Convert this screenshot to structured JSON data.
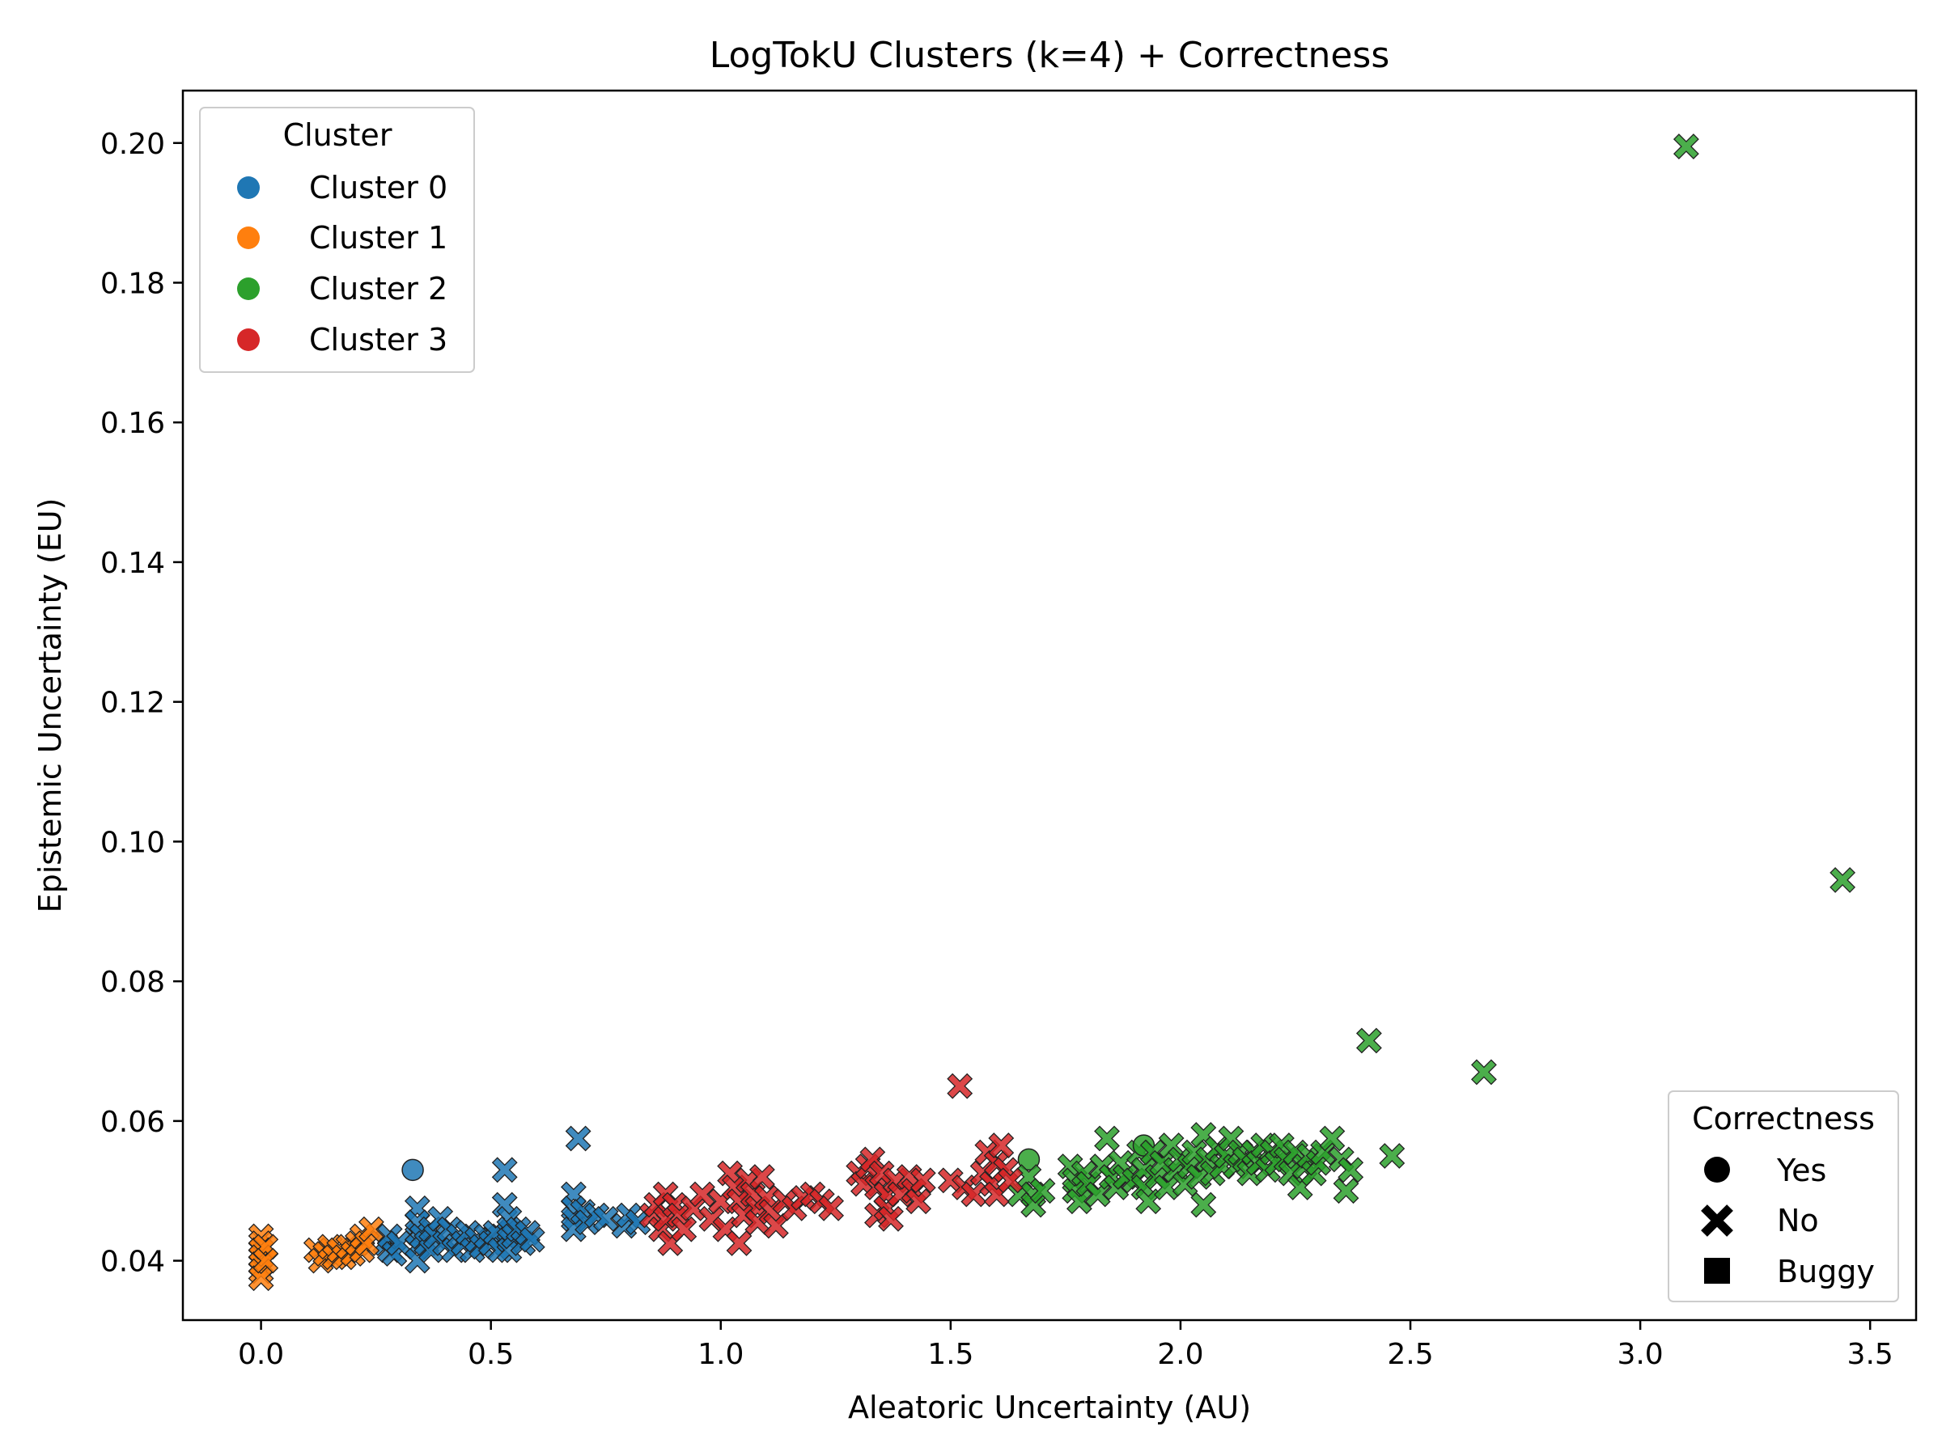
{
  "chart_data": {
    "type": "scatter",
    "title": "LogTokU Clusters (k=4) + Correctness",
    "xlabel": "Aleatoric Uncertainty (AU)",
    "ylabel": "Epistemic Uncertainty (EU)",
    "xlim": [
      -0.17,
      3.6
    ],
    "ylim": [
      0.0315,
      0.2075
    ],
    "xticks": [
      0.0,
      0.5,
      1.0,
      1.5,
      2.0,
      2.5,
      3.0,
      3.5
    ],
    "xtick_labels": [
      "0.0",
      "0.5",
      "1.0",
      "1.5",
      "2.0",
      "2.5",
      "3.0",
      "3.5"
    ],
    "yticks": [
      0.04,
      0.06,
      0.08,
      0.1,
      0.12,
      0.14,
      0.16,
      0.18,
      0.2
    ],
    "ytick_labels": [
      "0.04",
      "0.06",
      "0.08",
      "0.10",
      "0.12",
      "0.14",
      "0.16",
      "0.18",
      "0.20"
    ],
    "grid": false,
    "legend_cluster": {
      "title": "Cluster",
      "placement": "top-left",
      "items": [
        {
          "label": "Cluster 0",
          "color": "#1f77b4"
        },
        {
          "label": "Cluster 1",
          "color": "#ff7f0e"
        },
        {
          "label": "Cluster 2",
          "color": "#2ca02c"
        },
        {
          "label": "Cluster 3",
          "color": "#d62728"
        }
      ]
    },
    "legend_correctness": {
      "title": "Correctness",
      "placement": "bottom-right",
      "items": [
        {
          "label": "Yes",
          "marker": "circle"
        },
        {
          "label": "No",
          "marker": "x"
        },
        {
          "label": "Buggy",
          "marker": "square"
        }
      ]
    },
    "series": [
      {
        "cluster": 0,
        "color": "#1f77b4",
        "points": [
          [
            0.27,
            0.0425,
            "x"
          ],
          [
            0.28,
            0.0415,
            "x"
          ],
          [
            0.28,
            0.0435,
            "x"
          ],
          [
            0.29,
            0.041,
            "x"
          ],
          [
            0.3,
            0.0425,
            "x"
          ],
          [
            0.33,
            0.053,
            "o"
          ],
          [
            0.34,
            0.0475,
            "x"
          ],
          [
            0.34,
            0.0455,
            "x"
          ],
          [
            0.34,
            0.044,
            "x"
          ],
          [
            0.34,
            0.042,
            "x"
          ],
          [
            0.34,
            0.04,
            "x"
          ],
          [
            0.35,
            0.0435,
            "x"
          ],
          [
            0.36,
            0.0425,
            "x"
          ],
          [
            0.37,
            0.0415,
            "x"
          ],
          [
            0.37,
            0.0445,
            "x"
          ],
          [
            0.38,
            0.0435,
            "x"
          ],
          [
            0.39,
            0.046,
            "x"
          ],
          [
            0.4,
            0.0425,
            "x"
          ],
          [
            0.41,
            0.0445,
            "x"
          ],
          [
            0.42,
            0.0415,
            "x"
          ],
          [
            0.43,
            0.0435,
            "x"
          ],
          [
            0.44,
            0.0425,
            "x"
          ],
          [
            0.45,
            0.044,
            "x"
          ],
          [
            0.46,
            0.0415,
            "x"
          ],
          [
            0.47,
            0.043,
            "x"
          ],
          [
            0.48,
            0.042,
            "x"
          ],
          [
            0.49,
            0.0435,
            "x"
          ],
          [
            0.5,
            0.0425,
            "x"
          ],
          [
            0.51,
            0.044,
            "x"
          ],
          [
            0.52,
            0.0415,
            "x"
          ],
          [
            0.53,
            0.053,
            "x"
          ],
          [
            0.53,
            0.048,
            "x"
          ],
          [
            0.54,
            0.046,
            "x"
          ],
          [
            0.54,
            0.0445,
            "x"
          ],
          [
            0.54,
            0.043,
            "x"
          ],
          [
            0.54,
            0.0415,
            "x"
          ],
          [
            0.55,
            0.0435,
            "x"
          ],
          [
            0.56,
            0.0445,
            "x"
          ],
          [
            0.57,
            0.0425,
            "x"
          ],
          [
            0.58,
            0.044,
            "x"
          ],
          [
            0.59,
            0.043,
            "x"
          ],
          [
            0.68,
            0.0495,
            "x"
          ],
          [
            0.68,
            0.0475,
            "x"
          ],
          [
            0.68,
            0.046,
            "x"
          ],
          [
            0.68,
            0.0445,
            "x"
          ],
          [
            0.69,
            0.0575,
            "x"
          ],
          [
            0.7,
            0.047,
            "x"
          ],
          [
            0.71,
            0.0455,
            "x"
          ],
          [
            0.73,
            0.0465,
            "x"
          ],
          [
            0.75,
            0.046,
            "x"
          ],
          [
            0.79,
            0.045,
            "x"
          ],
          [
            0.8,
            0.0465,
            "x"
          ],
          [
            0.82,
            0.0455,
            "x"
          ]
        ]
      },
      {
        "cluster": 1,
        "color": "#ff7f0e",
        "points": [
          [
            0.0,
            0.0435,
            "x"
          ],
          [
            0.0,
            0.0425,
            "x"
          ],
          [
            0.0,
            0.0415,
            "x"
          ],
          [
            0.0,
            0.0405,
            "x"
          ],
          [
            0.0,
            0.0395,
            "x"
          ],
          [
            0.0,
            0.0385,
            "x"
          ],
          [
            0.0,
            0.0375,
            "x"
          ],
          [
            0.01,
            0.042,
            "x"
          ],
          [
            0.01,
            0.04,
            "x"
          ],
          [
            0.12,
            0.0415,
            "x"
          ],
          [
            0.13,
            0.04,
            "x"
          ],
          [
            0.14,
            0.041,
            "x"
          ],
          [
            0.15,
            0.042,
            "x"
          ],
          [
            0.16,
            0.0405,
            "x"
          ],
          [
            0.17,
            0.0415,
            "x"
          ],
          [
            0.18,
            0.0405,
            "x"
          ],
          [
            0.19,
            0.042,
            "x"
          ],
          [
            0.2,
            0.041,
            "x"
          ],
          [
            0.21,
            0.0425,
            "x"
          ],
          [
            0.22,
            0.0415,
            "x"
          ],
          [
            0.22,
            0.0435,
            "x"
          ],
          [
            0.23,
            0.0425,
            "x"
          ],
          [
            0.24,
            0.0445,
            "x"
          ]
        ]
      },
      {
        "cluster": 2,
        "color": "#2ca02c",
        "points": [
          [
            1.65,
            0.0495,
            "x"
          ],
          [
            1.67,
            0.0545,
            "o"
          ],
          [
            1.67,
            0.052,
            "x"
          ],
          [
            1.68,
            0.0495,
            "x"
          ],
          [
            1.68,
            0.048,
            "x"
          ],
          [
            1.7,
            0.05,
            "x"
          ],
          [
            1.76,
            0.0535,
            "x"
          ],
          [
            1.77,
            0.0515,
            "x"
          ],
          [
            1.77,
            0.05,
            "x"
          ],
          [
            1.78,
            0.0485,
            "x"
          ],
          [
            1.79,
            0.0525,
            "x"
          ],
          [
            1.8,
            0.051,
            "x"
          ],
          [
            1.82,
            0.0495,
            "x"
          ],
          [
            1.83,
            0.0535,
            "x"
          ],
          [
            1.84,
            0.0575,
            "x"
          ],
          [
            1.85,
            0.052,
            "x"
          ],
          [
            1.86,
            0.0505,
            "x"
          ],
          [
            1.87,
            0.054,
            "x"
          ],
          [
            1.88,
            0.052,
            "x"
          ],
          [
            1.9,
            0.0515,
            "x"
          ],
          [
            1.91,
            0.0555,
            "x"
          ],
          [
            1.92,
            0.0565,
            "o"
          ],
          [
            1.92,
            0.053,
            "x"
          ],
          [
            1.92,
            0.0505,
            "x"
          ],
          [
            1.93,
            0.0485,
            "x"
          ],
          [
            1.94,
            0.0555,
            "x"
          ],
          [
            1.95,
            0.052,
            "x"
          ],
          [
            1.96,
            0.054,
            "x"
          ],
          [
            1.97,
            0.0505,
            "x"
          ],
          [
            1.98,
            0.0565,
            "x"
          ],
          [
            1.99,
            0.053,
            "x"
          ],
          [
            2.0,
            0.0545,
            "x"
          ],
          [
            2.01,
            0.051,
            "x"
          ],
          [
            2.02,
            0.0535,
            "x"
          ],
          [
            2.03,
            0.0555,
            "x"
          ],
          [
            2.04,
            0.052,
            "x"
          ],
          [
            2.05,
            0.058,
            "x"
          ],
          [
            2.05,
            0.048,
            "x"
          ],
          [
            2.06,
            0.0545,
            "x"
          ],
          [
            2.07,
            0.0525,
            "x"
          ],
          [
            2.08,
            0.056,
            "x"
          ],
          [
            2.09,
            0.0535,
            "x"
          ],
          [
            2.1,
            0.055,
            "x"
          ],
          [
            2.11,
            0.0575,
            "x"
          ],
          [
            2.12,
            0.0535,
            "x"
          ],
          [
            2.13,
            0.0555,
            "x"
          ],
          [
            2.14,
            0.0545,
            "x"
          ],
          [
            2.15,
            0.0525,
            "x"
          ],
          [
            2.16,
            0.0555,
            "x"
          ],
          [
            2.17,
            0.054,
            "x"
          ],
          [
            2.18,
            0.0565,
            "x"
          ],
          [
            2.19,
            0.053,
            "x"
          ],
          [
            2.2,
            0.0555,
            "x"
          ],
          [
            2.21,
            0.054,
            "x"
          ],
          [
            2.22,
            0.0565,
            "x"
          ],
          [
            2.23,
            0.0545,
            "x"
          ],
          [
            2.24,
            0.0525,
            "x"
          ],
          [
            2.25,
            0.0555,
            "x"
          ],
          [
            2.26,
            0.0505,
            "x"
          ],
          [
            2.27,
            0.0535,
            "x"
          ],
          [
            2.28,
            0.055,
            "x"
          ],
          [
            2.29,
            0.0525,
            "x"
          ],
          [
            2.3,
            0.054,
            "x"
          ],
          [
            2.31,
            0.0555,
            "x"
          ],
          [
            2.33,
            0.0575,
            "x"
          ],
          [
            2.35,
            0.0545,
            "x"
          ],
          [
            2.36,
            0.05,
            "x"
          ],
          [
            2.37,
            0.053,
            "x"
          ],
          [
            2.41,
            0.0715,
            "x"
          ],
          [
            2.46,
            0.055,
            "x"
          ],
          [
            2.66,
            0.067,
            "x"
          ],
          [
            3.1,
            0.1995,
            "x"
          ],
          [
            3.44,
            0.0945,
            "x"
          ]
        ]
      },
      {
        "cluster": 3,
        "color": "#d62728",
        "points": [
          [
            0.85,
            0.0465,
            "x"
          ],
          [
            0.86,
            0.048,
            "x"
          ],
          [
            0.87,
            0.0445,
            "x"
          ],
          [
            0.88,
            0.0495,
            "x"
          ],
          [
            0.88,
            0.046,
            "x"
          ],
          [
            0.89,
            0.0425,
            "x"
          ],
          [
            0.9,
            0.048,
            "x"
          ],
          [
            0.91,
            0.0465,
            "x"
          ],
          [
            0.92,
            0.0445,
            "x"
          ],
          [
            0.94,
            0.0475,
            "x"
          ],
          [
            0.96,
            0.0495,
            "x"
          ],
          [
            0.98,
            0.046,
            "x"
          ],
          [
            1.0,
            0.0485,
            "x"
          ],
          [
            1.01,
            0.0445,
            "x"
          ],
          [
            1.02,
            0.0525,
            "x"
          ],
          [
            1.03,
            0.0505,
            "x"
          ],
          [
            1.04,
            0.0485,
            "x"
          ],
          [
            1.04,
            0.0425,
            "x"
          ],
          [
            1.05,
            0.0465,
            "x"
          ],
          [
            1.06,
            0.0515,
            "x"
          ],
          [
            1.07,
            0.0495,
            "x"
          ],
          [
            1.08,
            0.0475,
            "x"
          ],
          [
            1.08,
            0.0455,
            "x"
          ],
          [
            1.09,
            0.052,
            "x"
          ],
          [
            1.1,
            0.049,
            "x"
          ],
          [
            1.11,
            0.047,
            "x"
          ],
          [
            1.12,
            0.045,
            "x"
          ],
          [
            1.14,
            0.0485,
            "x"
          ],
          [
            1.16,
            0.0475,
            "x"
          ],
          [
            1.18,
            0.049,
            "x"
          ],
          [
            1.2,
            0.0495,
            "x"
          ],
          [
            1.22,
            0.0485,
            "x"
          ],
          [
            1.24,
            0.0475,
            "x"
          ],
          [
            1.3,
            0.0525,
            "x"
          ],
          [
            1.31,
            0.051,
            "x"
          ],
          [
            1.32,
            0.0535,
            "x"
          ],
          [
            1.33,
            0.0545,
            "x"
          ],
          [
            1.34,
            0.0505,
            "x"
          ],
          [
            1.34,
            0.0465,
            "x"
          ],
          [
            1.35,
            0.0525,
            "x"
          ],
          [
            1.36,
            0.0495,
            "x"
          ],
          [
            1.36,
            0.0475,
            "x"
          ],
          [
            1.37,
            0.046,
            "x"
          ],
          [
            1.38,
            0.0515,
            "x"
          ],
          [
            1.39,
            0.0495,
            "x"
          ],
          [
            1.41,
            0.052,
            "x"
          ],
          [
            1.42,
            0.05,
            "x"
          ],
          [
            1.43,
            0.0485,
            "x"
          ],
          [
            1.44,
            0.0515,
            "x"
          ],
          [
            1.52,
            0.065,
            "x"
          ],
          [
            1.5,
            0.0515,
            "x"
          ],
          [
            1.53,
            0.0505,
            "x"
          ],
          [
            1.55,
            0.0495,
            "x"
          ],
          [
            1.57,
            0.0525,
            "x"
          ],
          [
            1.58,
            0.0555,
            "x"
          ],
          [
            1.59,
            0.051,
            "x"
          ],
          [
            1.6,
            0.0495,
            "x"
          ],
          [
            1.6,
            0.054,
            "x"
          ],
          [
            1.61,
            0.0565,
            "x"
          ],
          [
            1.62,
            0.053,
            "x"
          ],
          [
            1.63,
            0.0515,
            "x"
          ]
        ]
      }
    ]
  }
}
